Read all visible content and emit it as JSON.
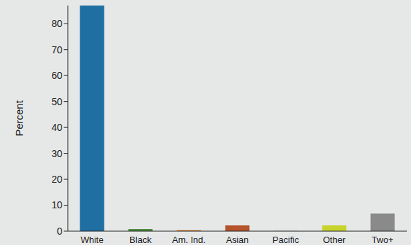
{
  "chart_data": {
    "type": "bar",
    "y_label": "Percent",
    "categories": [
      "White",
      "Black",
      "Am. Ind.",
      "Asian",
      "Pacific",
      "Other",
      "Two+"
    ],
    "values": [
      87,
      0.8,
      0.4,
      2.3,
      0.1,
      2.3,
      6.8
    ],
    "colors": [
      "#1f6fa3",
      "#4d8a3a",
      "#e07b22",
      "#b5532a",
      "#7a4f9a",
      "#c7d42c",
      "#8a8a8a"
    ],
    "ylim": [
      0,
      87
    ],
    "yticks": [
      0,
      10,
      20,
      30,
      40,
      50,
      60,
      70,
      80
    ],
    "grid": false
  }
}
